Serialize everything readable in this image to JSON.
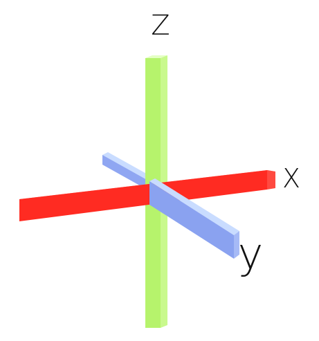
{
  "axes": {
    "x": {
      "label": "X",
      "color": "#ff3b30"
    },
    "y": {
      "label": "y",
      "color": "#8aa2f0"
    },
    "z": {
      "label": "Z",
      "color": "#b7f06f"
    }
  }
}
